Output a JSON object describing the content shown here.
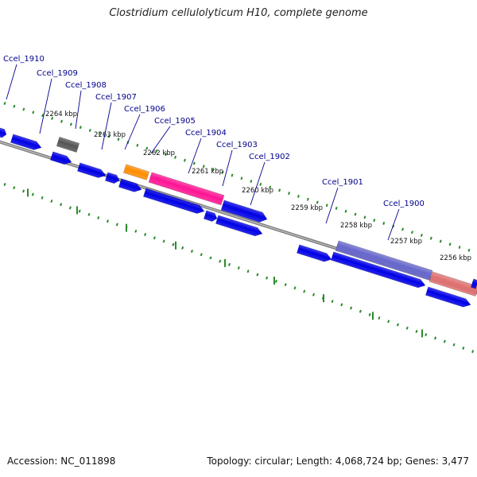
{
  "title": "Clostridium cellulolyticum H10, complete genome",
  "footer": {
    "accession": "Accession: NC_011898",
    "summary": "Topology: circular; Length: 4,068,724 bp; Genes: 3,477"
  },
  "colors": {
    "forward_cds": "#0000e6",
    "reverse_cds": "#0000e6",
    "highlight_pink": "#ff1493",
    "highlight_orange": "#ff8c00",
    "highlight_gray": "#555555",
    "highlight_salmon": "#e07070",
    "highlight_slate": "#6666cc",
    "backbone": "#808080",
    "ticks": "#2d8a2d",
    "gene_label": "#00008b"
  },
  "ticks": [
    {
      "label": "2264 kbp"
    },
    {
      "label": "2263 kbp"
    },
    {
      "label": "2262 kbp"
    },
    {
      "label": "2261 kbp"
    },
    {
      "label": "2260 kbp"
    },
    {
      "label": "2259 kbp"
    },
    {
      "label": "2258 kbp"
    },
    {
      "label": "2257 kbp"
    },
    {
      "label": "2256 kbp"
    }
  ],
  "gene_labels": [
    {
      "label": "Ccel_1910"
    },
    {
      "label": "Ccel_1909"
    },
    {
      "label": "Ccel_1908"
    },
    {
      "label": "Ccel_1907"
    },
    {
      "label": "Ccel_1906"
    },
    {
      "label": "Ccel_1905"
    },
    {
      "label": "Ccel_1904"
    },
    {
      "label": "Ccel_1903"
    },
    {
      "label": "Ccel_1902"
    },
    {
      "label": "Ccel_1901"
    },
    {
      "label": "Ccel_1900"
    }
  ]
}
